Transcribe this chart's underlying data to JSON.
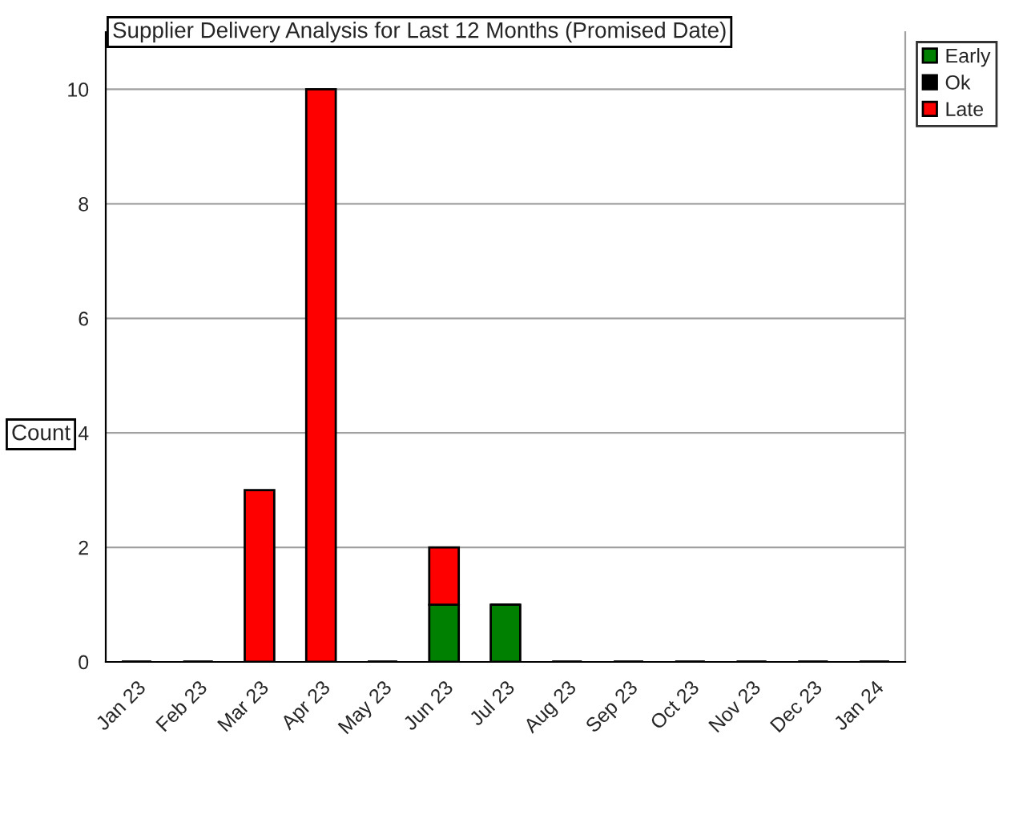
{
  "chart_data": {
    "type": "bar",
    "title": "Supplier Delivery Analysis for Last 12 Months (Promised Date)",
    "ylabel": "Count",
    "categories": [
      "Jan 23",
      "Feb 23",
      "Mar 23",
      "Apr 23",
      "May 23",
      "Jun 23",
      "Jul 23",
      "Aug 23",
      "Sep 23",
      "Oct 23",
      "Nov 23",
      "Dec 23",
      "Jan 24"
    ],
    "series": [
      {
        "name": "Early",
        "color": "#008000",
        "values": [
          0,
          0,
          0,
          0,
          0,
          1,
          1,
          0,
          0,
          0,
          0,
          0,
          0
        ]
      },
      {
        "name": "Ok",
        "color": "#000000",
        "values": [
          0,
          0,
          0,
          0,
          0,
          0,
          0,
          0,
          0,
          0,
          0,
          0,
          0
        ]
      },
      {
        "name": "Late",
        "color": "#ff0000",
        "values": [
          0,
          0,
          3,
          10,
          0,
          1,
          0,
          0,
          0,
          0,
          0,
          0,
          0
        ]
      }
    ],
    "stacked": true,
    "ylim": [
      0,
      11
    ],
    "yticks": [
      0,
      2,
      4,
      6,
      8,
      10
    ],
    "grid": "y",
    "legend": "top right"
  }
}
